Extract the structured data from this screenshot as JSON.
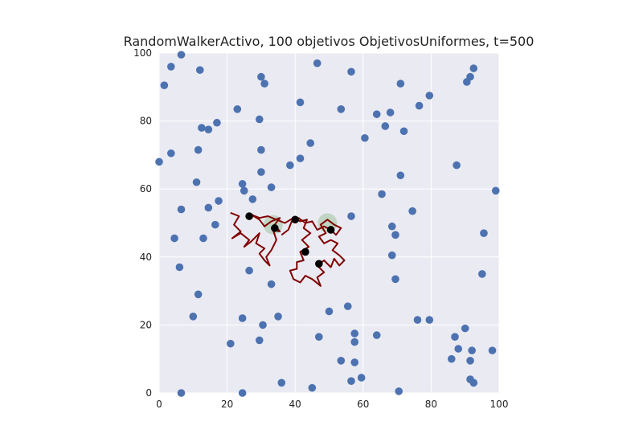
{
  "chart_data": {
    "type": "scatter",
    "title": "RandomWalkerActivo, 100 objetivos ObjetivosUniformes, t=500",
    "xlabel": "",
    "ylabel": "",
    "xlim": [
      0,
      100
    ],
    "ylim": [
      0,
      100
    ],
    "x_ticks": [
      "0",
      "20",
      "40",
      "60",
      "80",
      "100"
    ],
    "y_ticks": [
      "0",
      "20",
      "40",
      "60",
      "80",
      "100"
    ],
    "grid": true,
    "colors": {
      "background": "#eaeaf2",
      "grid": "#ffffff",
      "targets": "#4c72b0",
      "walk": "#800000",
      "found": "#000000",
      "halo": "#9dc39d"
    },
    "series": [
      {
        "kind": "targets",
        "points": [
          [
            0,
            68
          ],
          [
            1.5,
            90.5
          ],
          [
            3.5,
            96
          ],
          [
            6.5,
            99.5
          ],
          [
            12,
            95
          ],
          [
            3.5,
            70.5
          ],
          [
            12.5,
            78
          ],
          [
            14.5,
            77.5
          ],
          [
            17,
            79.5
          ],
          [
            11.5,
            71.5
          ],
          [
            11,
            62
          ],
          [
            6.5,
            54
          ],
          [
            4.5,
            45.5
          ],
          [
            6,
            37
          ],
          [
            11.5,
            29
          ],
          [
            10,
            22.5
          ],
          [
            6.5,
            0
          ],
          [
            13,
            45.5
          ],
          [
            14.5,
            54.5
          ],
          [
            16.5,
            49.5
          ],
          [
            17.5,
            56.5
          ],
          [
            23,
            83.5
          ],
          [
            29.5,
            80.5
          ],
          [
            30,
            93
          ],
          [
            31,
            91
          ],
          [
            30,
            71.5
          ],
          [
            30,
            65
          ],
          [
            24.5,
            61.5
          ],
          [
            25,
            59.5
          ],
          [
            27.5,
            57
          ],
          [
            33,
            60.5
          ],
          [
            38.5,
            67
          ],
          [
            41.5,
            69
          ],
          [
            44.5,
            73.5
          ],
          [
            41.5,
            85.5
          ],
          [
            46.5,
            97
          ],
          [
            53.5,
            83.5
          ],
          [
            56.5,
            94.5
          ],
          [
            60.5,
            75
          ],
          [
            64,
            82
          ],
          [
            66.5,
            78.5
          ],
          [
            68,
            82.5
          ],
          [
            71,
            91
          ],
          [
            72,
            77
          ],
          [
            76.5,
            84.5
          ],
          [
            79.5,
            87.5
          ],
          [
            90.5,
            91.5
          ],
          [
            91.5,
            93
          ],
          [
            92.5,
            95.5
          ],
          [
            87.5,
            67
          ],
          [
            71,
            64
          ],
          [
            65.5,
            58.5
          ],
          [
            74.5,
            53.5
          ],
          [
            68.5,
            49
          ],
          [
            69.5,
            46.5
          ],
          [
            68.5,
            40.5
          ],
          [
            69.5,
            33.5
          ],
          [
            56.5,
            52
          ],
          [
            95.5,
            47
          ],
          [
            99,
            59.5
          ],
          [
            95,
            35
          ],
          [
            26.5,
            36
          ],
          [
            33,
            32
          ],
          [
            50,
            24
          ],
          [
            55.5,
            25.5
          ],
          [
            35,
            22.5
          ],
          [
            24.5,
            22
          ],
          [
            30.5,
            20
          ],
          [
            21,
            14.5
          ],
          [
            29.5,
            15.5
          ],
          [
            47,
            16.5
          ],
          [
            57.5,
            17.5
          ],
          [
            57.5,
            15
          ],
          [
            64,
            17
          ],
          [
            76,
            21.5
          ],
          [
            79.5,
            21.5
          ],
          [
            87,
            16.5
          ],
          [
            90,
            19
          ],
          [
            88,
            13
          ],
          [
            92,
            12.5
          ],
          [
            86,
            10
          ],
          [
            91.5,
            9.5
          ],
          [
            98,
            12.5
          ],
          [
            53.5,
            9.5
          ],
          [
            57.5,
            9
          ],
          [
            59.5,
            4.5
          ],
          [
            56.5,
            3.5
          ],
          [
            70.5,
            0.5
          ],
          [
            45,
            1.5
          ],
          [
            36,
            3
          ],
          [
            24.5,
            0
          ],
          [
            91.5,
            4
          ],
          [
            92.5,
            3
          ]
        ]
      },
      {
        "kind": "found",
        "points": [
          [
            26.5,
            52
          ],
          [
            40,
            51
          ],
          [
            43,
            41.5
          ],
          [
            47,
            38
          ],
          [
            50.5,
            48
          ],
          [
            34,
            48.5
          ]
        ]
      },
      {
        "kind": "halo",
        "points": [
          [
            33.5,
            49.5
          ],
          [
            49.5,
            50
          ]
        ]
      },
      {
        "kind": "walk",
        "points": [
          [
            21,
            53
          ],
          [
            23.5,
            52
          ],
          [
            22,
            49.5
          ],
          [
            24,
            47.5
          ],
          [
            21.5,
            45.5
          ],
          [
            24,
            47
          ],
          [
            26.5,
            45
          ],
          [
            25,
            43
          ],
          [
            27,
            44.5
          ],
          [
            29.5,
            47
          ],
          [
            28.5,
            44
          ],
          [
            31,
            42.5
          ],
          [
            29.5,
            41
          ],
          [
            31,
            39
          ],
          [
            32.5,
            37.5
          ],
          [
            31.5,
            40
          ],
          [
            33,
            42
          ],
          [
            34.5,
            45
          ],
          [
            33.5,
            48
          ],
          [
            35.5,
            47.5
          ],
          [
            34,
            49.5
          ],
          [
            35.5,
            51.5
          ],
          [
            33,
            50.5
          ],
          [
            31,
            49
          ],
          [
            29.5,
            51
          ],
          [
            27,
            52.5
          ],
          [
            29.5,
            51.5
          ],
          [
            32,
            52
          ],
          [
            34.5,
            51
          ],
          [
            37,
            50
          ],
          [
            39.5,
            51.5
          ],
          [
            41.5,
            50.5
          ],
          [
            43.5,
            51
          ],
          [
            42.5,
            48.5
          ],
          [
            44.5,
            47
          ],
          [
            42,
            45
          ],
          [
            44,
            43
          ],
          [
            41.5,
            41.5
          ],
          [
            42.5,
            39
          ],
          [
            40.5,
            38.5
          ],
          [
            40.5,
            36.5
          ],
          [
            38.5,
            36
          ],
          [
            39.5,
            33.5
          ],
          [
            41.5,
            32.5
          ],
          [
            43,
            34.5
          ],
          [
            45,
            33.5
          ],
          [
            47.5,
            31.5
          ],
          [
            46.5,
            34
          ],
          [
            48.5,
            35.5
          ],
          [
            46.5,
            37.5
          ],
          [
            48.5,
            39
          ],
          [
            50.5,
            37
          ],
          [
            51.5,
            39.5
          ],
          [
            53,
            37.5
          ],
          [
            54.5,
            39
          ],
          [
            53,
            40.5
          ],
          [
            51,
            42
          ],
          [
            52.5,
            44
          ],
          [
            50.5,
            45
          ],
          [
            48.5,
            44
          ],
          [
            47,
            46
          ],
          [
            49,
            47
          ],
          [
            47.5,
            49.5
          ],
          [
            49.5,
            51
          ],
          [
            51.5,
            49.5
          ],
          [
            53.5,
            48.5
          ],
          [
            52,
            46.5
          ],
          [
            50.5,
            48
          ],
          [
            48.5,
            49
          ],
          [
            46.5,
            48
          ],
          [
            45,
            50.5
          ],
          [
            43,
            50
          ],
          [
            41,
            51.5
          ],
          [
            39,
            50.5
          ],
          [
            38,
            48
          ],
          [
            36,
            46.5
          ]
        ]
      }
    ]
  }
}
